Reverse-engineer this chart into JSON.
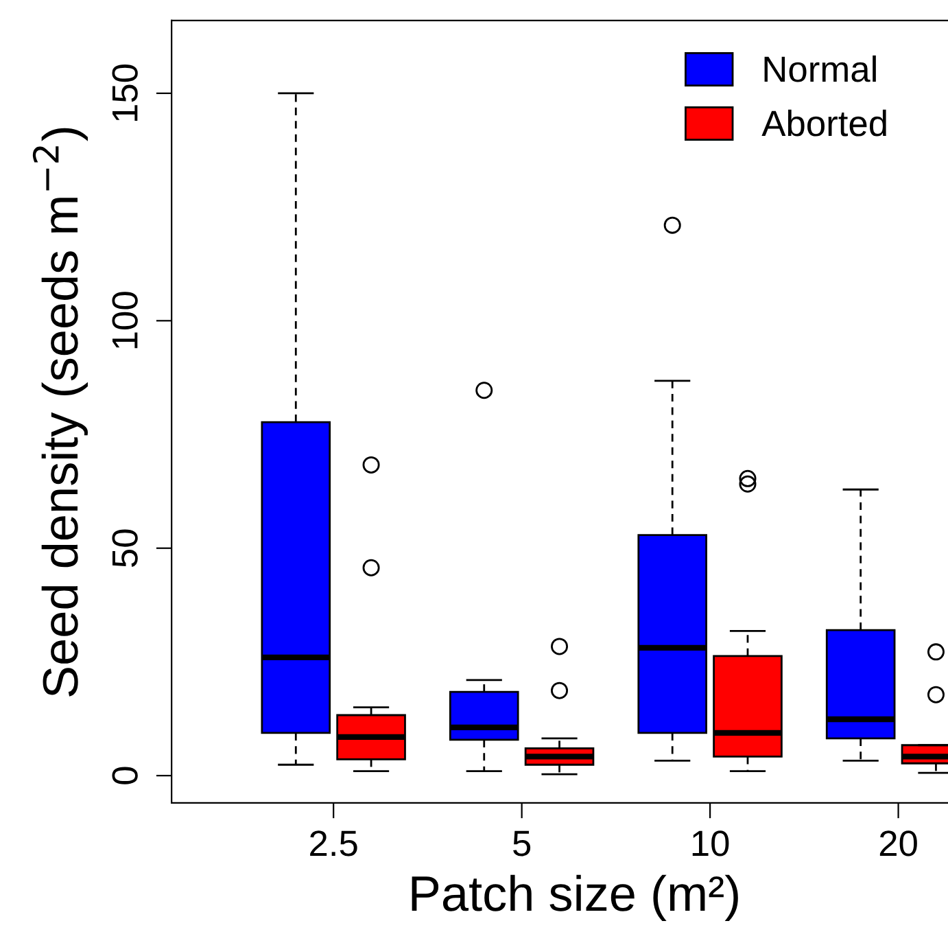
{
  "chart_data": {
    "type": "box",
    "xlabel": "Patch size (m²)",
    "ylabel": "Seed density (seeds m$^{−2}$)",
    "categories": [
      "2.5",
      "5",
      "10",
      "20"
    ],
    "ylim": [
      -6,
      166
    ],
    "yticks": [
      0,
      50,
      100,
      150
    ],
    "grid": false,
    "legend": "top right",
    "series": [
      {
        "name": "Normal",
        "color": "#0000ff",
        "boxes": [
          {
            "low": 2.4,
            "q1": 9.4,
            "median": 26,
            "q3": 77.7,
            "high": 150
          },
          {
            "low": 1,
            "q1": 7.9,
            "median": 10.6,
            "q3": 18.4,
            "high": 21,
            "outliers": [
              84.7
            ]
          },
          {
            "low": 3.3,
            "q1": 9.4,
            "median": 28.1,
            "q3": 52.9,
            "high": 86.8,
            "outliers": [
              121
            ]
          },
          {
            "low": 3.3,
            "q1": 8.2,
            "median": 12.4,
            "q3": 32,
            "high": 62.9
          }
        ]
      },
      {
        "name": "Aborted",
        "color": "#ff0000",
        "boxes": [
          {
            "low": 1,
            "q1": 3.6,
            "median": 8.5,
            "q3": 13.3,
            "high": 15,
            "outliers": [
              45.7,
              68.3
            ]
          },
          {
            "low": 0.3,
            "q1": 2.4,
            "median": 4.2,
            "q3": 6,
            "high": 8.2,
            "outliers": [
              18.7,
              28.4
            ]
          },
          {
            "low": 1,
            "q1": 4.2,
            "median": 9.4,
            "q3": 26.3,
            "high": 31.8,
            "outliers": [
              64.1,
              65.3
            ]
          },
          {
            "low": 0.6,
            "q1": 2.7,
            "median": 4.2,
            "q3": 6.7,
            "high": 6.7,
            "outliers": [
              17.8,
              27.2
            ]
          }
        ]
      }
    ]
  }
}
